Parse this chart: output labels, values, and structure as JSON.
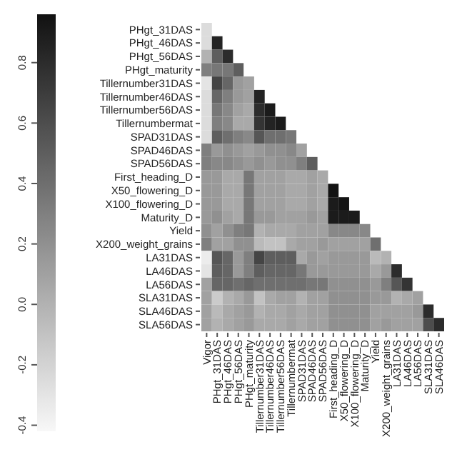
{
  "chart_data": {
    "type": "heatmap",
    "categories": [
      "Vigor",
      "PHgt_31DAS",
      "PHgt_46DAS",
      "PHgt_56DAS",
      "PHgt_maturity",
      "Tillernumber31DAS",
      "Tillernumber46DAS",
      "Tillernumber56DAS",
      "Tillernumbermat",
      "SPAD31DAS",
      "SPAD46DAS",
      "SPAD56DAS",
      "First_heading_D",
      "X50_flowering_D",
      "X100_flowering_D",
      "Maturity_D",
      "Yield",
      "X200_weight_grains",
      "LA31DAS",
      "LA46DAS",
      "LA56DAS",
      "SLA31DAS",
      "SLA46DAS"
    ],
    "y_categories": [
      "PHgt_31DAS",
      "PHgt_46DAS",
      "PHgt_56DAS",
      "PHgt_maturity",
      "Tillernumber31DAS",
      "Tillernumber46DAS",
      "Tillernumber56DAS",
      "Tillernumbermat",
      "SPAD31DAS",
      "SPAD46DAS",
      "SPAD56DAS",
      "First_heading_D",
      "X50_flowering_D",
      "X100_flowering_D",
      "Maturity_D",
      "Yield",
      "X200_weight_grains",
      "LA31DAS",
      "LA46DAS",
      "LA56DAS",
      "SLA31DAS",
      "SLA46DAS",
      "SLA56DAS"
    ],
    "cells": [
      [
        -0.25,
        null,
        null,
        null,
        null,
        null,
        null,
        null,
        null,
        null,
        null,
        null,
        null,
        null,
        null,
        null,
        null,
        null,
        null,
        null,
        null,
        null,
        null
      ],
      [
        -0.25,
        0.85,
        null,
        null,
        null,
        null,
        null,
        null,
        null,
        null,
        null,
        null,
        null,
        null,
        null,
        null,
        null,
        null,
        null,
        null,
        null,
        null,
        null
      ],
      [
        0.0,
        0.5,
        0.8,
        null,
        null,
        null,
        null,
        null,
        null,
        null,
        null,
        null,
        null,
        null,
        null,
        null,
        null,
        null,
        null,
        null,
        null,
        null,
        null
      ],
      [
        0.3,
        0.35,
        0.35,
        0.5,
        null,
        null,
        null,
        null,
        null,
        null,
        null,
        null,
        null,
        null,
        null,
        null,
        null,
        null,
        null,
        null,
        null,
        null,
        null
      ],
      [
        -0.3,
        0.65,
        0.45,
        0.15,
        0.1,
        null,
        null,
        null,
        null,
        null,
        null,
        null,
        null,
        null,
        null,
        null,
        null,
        null,
        null,
        null,
        null,
        null,
        null
      ],
      [
        -0.25,
        0.45,
        0.3,
        0.15,
        0.1,
        0.85,
        null,
        null,
        null,
        null,
        null,
        null,
        null,
        null,
        null,
        null,
        null,
        null,
        null,
        null,
        null,
        null,
        null
      ],
      [
        -0.25,
        0.35,
        0.25,
        0.1,
        0.05,
        0.8,
        0.9,
        null,
        null,
        null,
        null,
        null,
        null,
        null,
        null,
        null,
        null,
        null,
        null,
        null,
        null,
        null,
        null
      ],
      [
        -0.25,
        0.3,
        0.25,
        0.05,
        0.05,
        0.75,
        0.85,
        0.9,
        null,
        null,
        null,
        null,
        null,
        null,
        null,
        null,
        null,
        null,
        null,
        null,
        null,
        null,
        null
      ],
      [
        -0.25,
        0.5,
        0.4,
        0.3,
        0.25,
        0.55,
        0.4,
        0.4,
        0.35,
        null,
        null,
        null,
        null,
        null,
        null,
        null,
        null,
        null,
        null,
        null,
        null,
        null,
        null
      ],
      [
        0.3,
        0.15,
        0.2,
        0.15,
        0.1,
        0.15,
        0.2,
        0.2,
        0.25,
        0.1,
        null,
        null,
        null,
        null,
        null,
        null,
        null,
        null,
        null,
        null,
        null,
        null,
        null
      ],
      [
        0.3,
        0.25,
        0.25,
        0.2,
        0.15,
        0.2,
        0.15,
        0.2,
        0.2,
        0.3,
        0.5,
        null,
        null,
        null,
        null,
        null,
        null,
        null,
        null,
        null,
        null,
        null,
        null
      ],
      [
        0.15,
        0.15,
        0.05,
        0.05,
        0.35,
        0.1,
        0.1,
        0.1,
        0.05,
        0.05,
        0.1,
        0.05,
        null,
        null,
        null,
        null,
        null,
        null,
        null,
        null,
        null,
        null,
        null
      ],
      [
        0.15,
        0.15,
        0.05,
        0.05,
        0.35,
        0.1,
        0.1,
        0.1,
        0.05,
        0.05,
        0.1,
        0.05,
        0.95,
        null,
        null,
        null,
        null,
        null,
        null,
        null,
        null,
        null,
        null
      ],
      [
        0.15,
        0.15,
        0.05,
        0.05,
        0.35,
        0.1,
        0.1,
        0.1,
        0.05,
        0.05,
        0.1,
        0.05,
        0.9,
        0.95,
        null,
        null,
        null,
        null,
        null,
        null,
        null,
        null,
        null
      ],
      [
        0.15,
        0.2,
        0.1,
        0.05,
        0.35,
        0.15,
        0.15,
        0.1,
        0.1,
        0.1,
        0.15,
        0.1,
        0.9,
        0.9,
        0.9,
        null,
        null,
        null,
        null,
        null,
        null,
        null,
        null
      ],
      [
        0.2,
        0.1,
        0.2,
        0.3,
        0.35,
        0.0,
        0.05,
        0.05,
        0.05,
        0.1,
        0.1,
        0.1,
        0.25,
        0.25,
        0.25,
        0.25,
        null,
        null,
        null,
        null,
        null,
        null,
        null
      ],
      [
        0.3,
        0.1,
        0.1,
        0.2,
        0.2,
        -0.05,
        -0.1,
        -0.1,
        0.05,
        0.1,
        0.1,
        0.15,
        0.1,
        0.1,
        0.1,
        0.1,
        0.4,
        null,
        null,
        null,
        null,
        null,
        null
      ],
      [
        -0.35,
        0.55,
        0.45,
        0.15,
        0.3,
        0.65,
        0.5,
        0.5,
        0.5,
        0.05,
        0.15,
        0.1,
        0.15,
        0.15,
        0.15,
        0.15,
        -0.05,
        0.0,
        null,
        null,
        null,
        null,
        null
      ],
      [
        -0.3,
        0.5,
        0.45,
        0.15,
        0.3,
        0.5,
        0.45,
        0.45,
        0.45,
        0.35,
        0.15,
        0.15,
        0.15,
        0.15,
        0.15,
        0.15,
        0.05,
        0.15,
        0.8,
        null,
        null,
        null,
        null
      ],
      [
        0.1,
        0.45,
        0.45,
        0.4,
        0.45,
        0.4,
        0.4,
        0.4,
        0.4,
        0.4,
        0.35,
        0.35,
        0.2,
        0.2,
        0.2,
        0.2,
        0.15,
        0.3,
        0.55,
        0.75,
        null,
        null,
        null
      ],
      [
        0.1,
        -0.15,
        0.0,
        0.05,
        0.15,
        -0.1,
        0.05,
        0.1,
        0.1,
        0.0,
        0.1,
        0.1,
        0.2,
        0.2,
        0.2,
        0.2,
        0.15,
        0.15,
        0.0,
        0.05,
        0.1,
        null,
        null
      ],
      [
        0.1,
        -0.05,
        0.05,
        0.1,
        0.15,
        0.0,
        0.05,
        0.05,
        0.1,
        0.05,
        0.1,
        0.1,
        0.2,
        0.2,
        0.2,
        0.2,
        0.1,
        0.1,
        0.1,
        0.1,
        0.15,
        0.8,
        null
      ],
      [
        0.1,
        0.0,
        0.05,
        0.1,
        0.15,
        0.05,
        0.05,
        0.05,
        0.1,
        0.05,
        0.1,
        0.1,
        0.2,
        0.2,
        0.2,
        0.2,
        0.1,
        0.15,
        0.1,
        0.1,
        0.1,
        0.6,
        0.8
      ]
    ],
    "clim": [
      -0.42,
      0.96
    ],
    "cticks": [
      -0.4,
      -0.2,
      {
        "value": 0,
        "label": "0.0"
      },
      0.2,
      0.4,
      0.6,
      0.8
    ]
  }
}
